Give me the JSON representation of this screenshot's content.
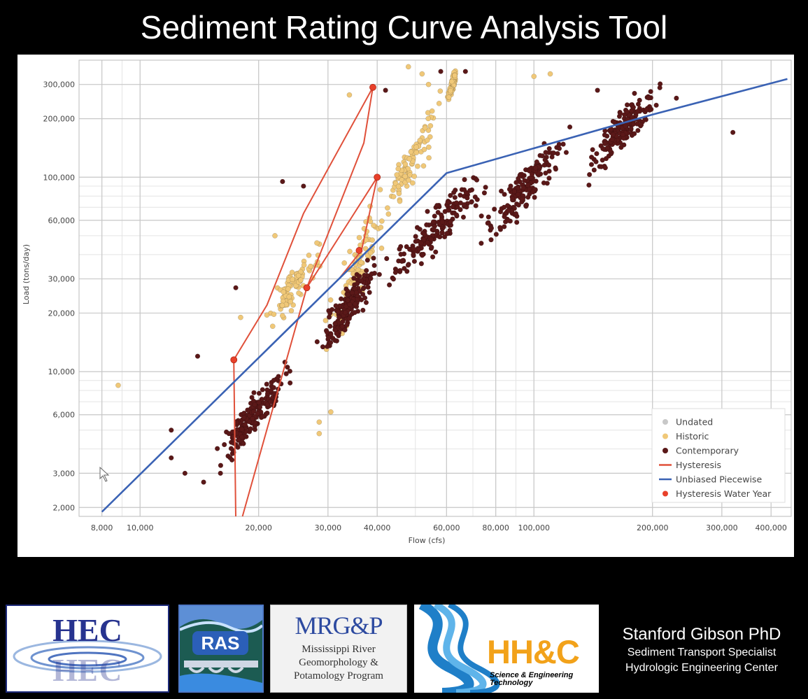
{
  "title": "Sediment Rating Curve Analysis Tool",
  "chart_data": {
    "type": "scatter",
    "xlabel": "Flow (cfs)",
    "ylabel": "Load (tons/day)",
    "xscale": "log",
    "yscale": "log",
    "xlim": [
      7000,
      450000
    ],
    "ylim": [
      1800,
      400000
    ],
    "x_ticks": [
      8000,
      10000,
      20000,
      30000,
      40000,
      60000,
      80000,
      100000,
      200000,
      300000,
      400000
    ],
    "x_tick_labels": [
      "8,000",
      "10,000",
      "20,000",
      "30,000",
      "40,000",
      "60,000",
      "80,000",
      "100,000",
      "200,000",
      "300,000",
      "400,000"
    ],
    "y_ticks": [
      2000,
      3000,
      6000,
      10000,
      20000,
      30000,
      60000,
      100000,
      200000,
      300000
    ],
    "y_tick_labels": [
      "2,000",
      "3,000",
      "6,000",
      "10,000",
      "20,000",
      "30,000",
      "60,000",
      "100,000",
      "200,000",
      "300,000"
    ],
    "grid": true,
    "legend_position": "bottom-right",
    "legend": [
      {
        "label": "Undated",
        "kind": "marker",
        "color": "#c8c8c8"
      },
      {
        "label": "Historic",
        "kind": "marker",
        "color": "#f0c878"
      },
      {
        "label": "Contemporary",
        "kind": "marker",
        "color": "#5a1818"
      },
      {
        "label": "Hysteresis",
        "kind": "line",
        "color": "#e0503a"
      },
      {
        "label": "Unbiased Piecewise",
        "kind": "line",
        "color": "#3a62b4"
      },
      {
        "label": "Hysteresis Water Year",
        "kind": "marker",
        "color": "#e8402a"
      }
    ],
    "series": [
      {
        "name": "Historic",
        "kind": "scatter-cloud",
        "color": "#f0c878",
        "approx_count": 350,
        "clusters": [
          {
            "x_range": [
              28000,
              45000
            ],
            "y_range": [
              9000,
              120000
            ]
          },
          {
            "x_range": [
              20000,
              30000
            ],
            "y_range": [
              15000,
              50000
            ]
          },
          {
            "x_range": [
              40000,
              60000
            ],
            "y_range": [
              50000,
              300000
            ]
          },
          {
            "x_range": [
              60000,
              64000
            ],
            "y_range": [
              230000,
              380000
            ]
          }
        ],
        "points": [
          [
            8800,
            8500
          ],
          [
            18000,
            19000
          ],
          [
            22000,
            50000
          ],
          [
            34000,
            265000
          ],
          [
            48000,
            370000
          ],
          [
            52000,
            340000
          ],
          [
            54000,
            300000
          ],
          [
            28500,
            5500
          ],
          [
            28500,
            4800
          ],
          [
            30500,
            6200
          ],
          [
            110000,
            340000
          ],
          [
            100000,
            330000
          ]
        ]
      },
      {
        "name": "Contemporary",
        "kind": "scatter-cloud",
        "color": "#5a1818",
        "approx_count": 900,
        "clusters": [
          {
            "x_range": [
              27000,
              42000
            ],
            "y_range": [
              10000,
              45000
            ]
          },
          {
            "x_range": [
              40000,
              80000
            ],
            "y_range": [
              25000,
              120000
            ]
          },
          {
            "x_range": [
              70000,
              130000
            ],
            "y_range": [
              40000,
              200000
            ]
          },
          {
            "x_range": [
              130000,
              220000
            ],
            "y_range": [
              90000,
              350000
            ]
          },
          {
            "x_range": [
              15000,
              25000
            ],
            "y_range": [
              3000,
              12000
            ]
          }
        ],
        "points": [
          [
            12000,
            5000
          ],
          [
            12000,
            3600
          ],
          [
            13000,
            3000
          ],
          [
            14000,
            12000
          ],
          [
            14500,
            2700
          ],
          [
            16000,
            3000
          ],
          [
            17500,
            27000
          ],
          [
            23000,
            95000
          ],
          [
            26000,
            90000
          ],
          [
            42000,
            280000
          ],
          [
            58000,
            350000
          ],
          [
            67000,
            350000
          ],
          [
            320000,
            170000
          ],
          [
            230000,
            255000
          ],
          [
            145000,
            280000
          ],
          [
            180000,
            270000
          ]
        ]
      },
      {
        "name": "Hysteresis",
        "kind": "line",
        "color": "#e0503a",
        "points": [
          [
            17500,
            1800
          ],
          [
            17300,
            11500
          ],
          [
            21000,
            22000
          ],
          [
            26000,
            65000
          ],
          [
            39000,
            290000
          ],
          [
            37000,
            150000
          ],
          [
            26500,
            27000
          ],
          [
            18200,
            1800
          ]
        ]
      },
      {
        "name": "Hysteresis",
        "kind": "line",
        "color": "#e0503a",
        "points": [
          [
            26500,
            27000
          ],
          [
            40000,
            100000
          ],
          [
            36500,
            42000
          ],
          [
            32000,
            30000
          ]
        ]
      },
      {
        "name": "Hysteresis Water Year",
        "kind": "marker",
        "color": "#e8402a",
        "points": [
          [
            17300,
            11500
          ],
          [
            26500,
            27000
          ],
          [
            36000,
            42000
          ],
          [
            40000,
            100000
          ],
          [
            39000,
            290000
          ]
        ]
      },
      {
        "name": "Unbiased Piecewise",
        "kind": "line",
        "color": "#3a62b4",
        "points": [
          [
            8000,
            1900
          ],
          [
            60000,
            105000
          ],
          [
            200000,
            210000
          ],
          [
            440000,
            320000
          ]
        ]
      }
    ]
  },
  "footer": {
    "hec_text": "HEC",
    "ras_text": "RAS",
    "mrgp_title": "MRG&P",
    "mrgp_line1": "Mississippi River",
    "mrgp_line2": "Geomorphology &",
    "mrgp_line3": "Potamology Program",
    "hhc_title": "HH&C",
    "hhc_line1": "Science & Engineering",
    "hhc_line2": "Technology",
    "author_name": "Stanford Gibson PhD",
    "author_role1": "Sediment Transport Specialist",
    "author_role2": "Hydrologic Engineering Center"
  }
}
